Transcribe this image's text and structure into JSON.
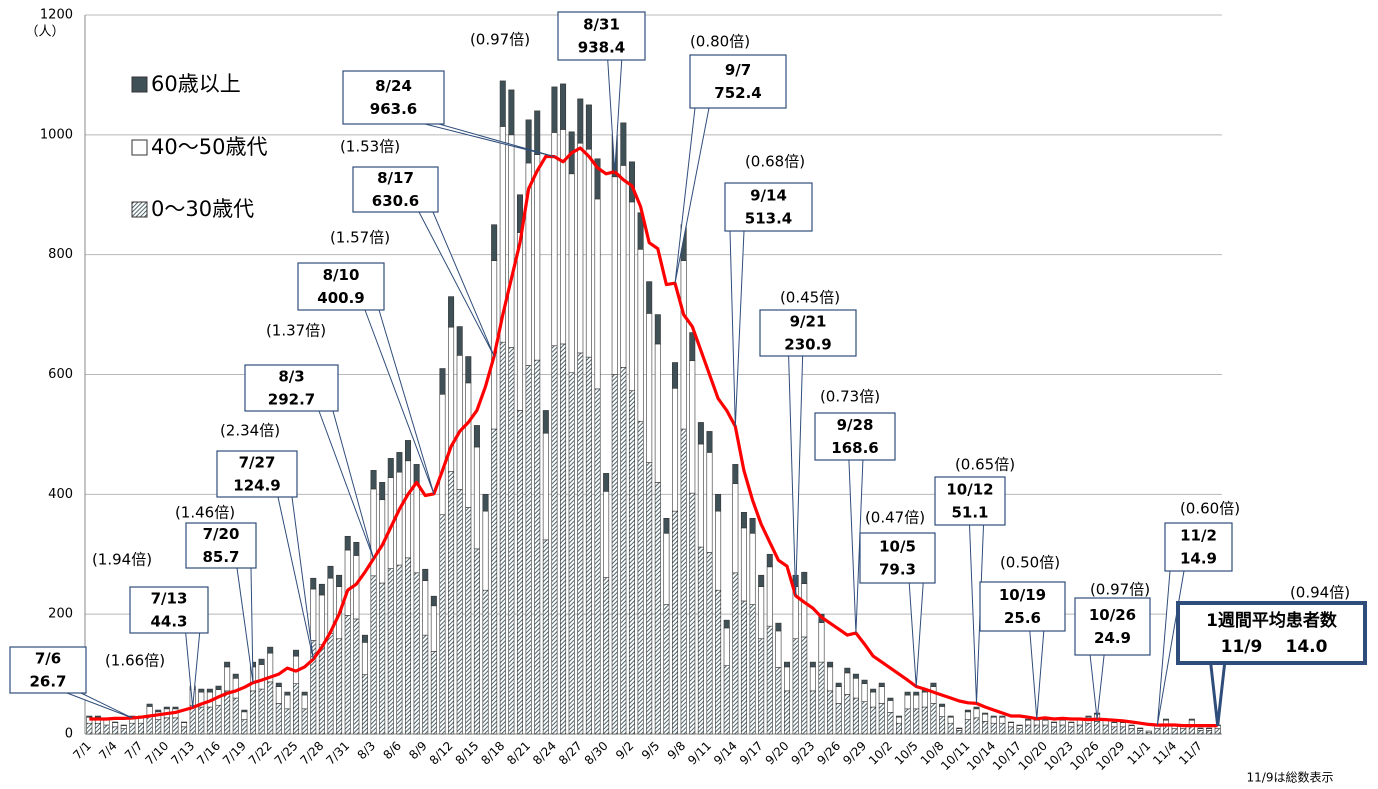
{
  "chart_data": {
    "type": "stacked_bar_line",
    "y_unit": "（人）",
    "footnote": "11/9は総数表示",
    "ylim": [
      0,
      1200
    ],
    "yticks": [
      0,
      200,
      400,
      600,
      800,
      1000,
      1200
    ],
    "grid": true,
    "categories": [
      "7/1",
      null,
      null,
      "7/4",
      null,
      null,
      "7/7",
      null,
      null,
      "7/10",
      null,
      null,
      "7/13",
      null,
      null,
      "7/16",
      null,
      null,
      "7/19",
      null,
      null,
      "7/22",
      null,
      null,
      "7/25",
      null,
      null,
      "7/28",
      null,
      null,
      "7/31",
      null,
      null,
      "8/3",
      null,
      null,
      "8/6",
      null,
      null,
      "8/9",
      null,
      null,
      "8/12",
      null,
      null,
      "8/15",
      null,
      null,
      "8/18",
      null,
      null,
      "8/21",
      null,
      null,
      "8/24",
      null,
      null,
      "8/27",
      null,
      null,
      "8/30",
      null,
      null,
      "9/2",
      null,
      null,
      "9/5",
      null,
      null,
      "9/8",
      null,
      null,
      "9/11",
      null,
      null,
      "9/14",
      null,
      null,
      "9/17",
      null,
      null,
      "9/20",
      null,
      null,
      "9/23",
      null,
      null,
      "9/26",
      null,
      null,
      "9/29",
      null,
      null,
      "10/2",
      null,
      null,
      "10/5",
      null,
      null,
      "10/8",
      null,
      null,
      "10/11",
      null,
      null,
      "10/14",
      null,
      null,
      "10/17",
      null,
      null,
      "10/20",
      null,
      null,
      "10/23",
      null,
      null,
      "10/26",
      null,
      null,
      "10/29",
      null,
      null,
      "11/1",
      null,
      null,
      "11/4",
      null,
      null,
      "11/7",
      null,
      null
    ],
    "series": [
      {
        "name": "60歳以上",
        "color": "#3f5157",
        "values": [
          2,
          2,
          2,
          1,
          1,
          2,
          2,
          4,
          3,
          3,
          3,
          1,
          6,
          5,
          5,
          6,
          8,
          7,
          3,
          8,
          9,
          10,
          6,
          5,
          10,
          5,
          18,
          18,
          20,
          19,
          23,
          22,
          12,
          31,
          29,
          32,
          33,
          34,
          32,
          19,
          16,
          43,
          51,
          48,
          44,
          36,
          28,
          60,
          76,
          75,
          63,
          72,
          73,
          38,
          76,
          76,
          70,
          74,
          74,
          67,
          30,
          70,
          71,
          67,
          61,
          53,
          49,
          25,
          43,
          60,
          47,
          36,
          35,
          28,
          13,
          32,
          26,
          25,
          19,
          21,
          13,
          8,
          19,
          19,
          8,
          14,
          8,
          6,
          8,
          7,
          6,
          5,
          6,
          4,
          2,
          5,
          5,
          5,
          6,
          4,
          2,
          1,
          3,
          3,
          2,
          2,
          2,
          1,
          1,
          2,
          2,
          2,
          1,
          2,
          1,
          2,
          2,
          2,
          2,
          1,
          1,
          1,
          1,
          0,
          1,
          2,
          1,
          1,
          2,
          1,
          1,
          1
        ]
      },
      {
        "name": "40〜50歳代",
        "color": "#ffffff",
        "values": [
          10,
          10,
          8,
          7,
          5,
          10,
          10,
          17,
          13,
          15,
          15,
          7,
          26,
          25,
          25,
          26,
          40,
          33,
          13,
          40,
          41,
          48,
          28,
          23,
          46,
          23,
          86,
          83,
          92,
          87,
          109,
          106,
          54,
          145,
          139,
          152,
          155,
          162,
          149,
          91,
          76,
          201,
          241,
          224,
          208,
          170,
          132,
          281,
          360,
          355,
          297,
          338,
          343,
          178,
          356,
          358,
          332,
          350,
          347,
          317,
          144,
          330,
          337,
          315,
          287,
          249,
          231,
          119,
          205,
          281,
          221,
          172,
          167,
          132,
          63,
          149,
          122,
          119,
          87,
          99,
          61,
          40,
          87,
          89,
          40,
          66,
          40,
          28,
          36,
          33,
          30,
          25,
          28,
          20,
          10,
          23,
          23,
          25,
          28,
          17,
          10,
          3,
          13,
          15,
          12,
          10,
          10,
          7,
          5,
          8,
          8,
          8,
          7,
          8,
          7,
          8,
          10,
          12,
          8,
          7,
          7,
          5,
          3,
          2,
          5,
          8,
          5,
          5,
          8,
          3,
          3,
          5
        ]
      },
      {
        "name": "0〜30歳代",
        "color": "#4f646c",
        "hatch": true,
        "values": [
          18,
          18,
          15,
          12,
          9,
          18,
          18,
          29,
          24,
          27,
          27,
          12,
          48,
          45,
          45,
          48,
          72,
          60,
          24,
          72,
          75,
          87,
          51,
          42,
          84,
          42,
          156,
          149,
          168,
          159,
          198,
          192,
          99,
          264,
          252,
          276,
          282,
          294,
          269,
          165,
          138,
          366,
          438,
          408,
          378,
          309,
          240,
          509,
          654,
          645,
          540,
          615,
          624,
          324,
          648,
          651,
          603,
          636,
          629,
          576,
          261,
          600,
          612,
          573,
          522,
          453,
          420,
          216,
          372,
          509,
          402,
          312,
          303,
          240,
          114,
          269,
          222,
          216,
          159,
          180,
          111,
          72,
          159,
          162,
          72,
          120,
          72,
          51,
          66,
          60,
          54,
          45,
          51,
          36,
          18,
          42,
          42,
          45,
          51,
          29,
          18,
          6,
          24,
          27,
          21,
          18,
          18,
          12,
          9,
          15,
          15,
          15,
          12,
          15,
          12,
          15,
          18,
          21,
          15,
          12,
          12,
          9,
          6,
          3,
          9,
          15,
          9,
          9,
          15,
          6,
          6,
          9
        ]
      }
    ],
    "average": {
      "color": "#ff0000",
      "values": [
        25,
        25,
        25,
        26,
        26,
        26.7,
        28,
        30,
        32,
        34,
        36,
        40,
        44.3,
        50,
        55,
        62,
        68,
        72,
        78,
        85.7,
        90,
        95,
        100,
        110,
        105,
        112,
        124.9,
        145,
        170,
        200,
        240,
        250,
        270,
        292.7,
        315,
        345,
        375,
        400,
        420,
        398,
        400.9,
        440,
        480,
        505,
        520,
        540,
        580,
        630.6,
        700,
        760,
        820,
        910,
        940,
        964,
        963.6,
        955,
        970,
        978,
        964,
        945,
        935,
        938.4,
        925,
        915,
        880,
        820,
        810,
        750,
        752.4,
        700,
        680,
        640,
        600,
        560,
        540,
        513.4,
        440,
        390,
        350,
        320,
        290,
        280,
        230.9,
        220,
        210,
        195,
        185,
        175,
        165,
        168.6,
        150,
        130,
        120,
        110,
        100,
        90,
        79.3,
        75,
        70,
        65,
        60,
        55,
        52,
        51.1,
        45,
        40,
        35,
        30,
        30,
        28,
        25.6,
        27,
        25,
        26,
        25,
        25,
        24,
        24.9,
        24,
        23,
        22,
        20,
        18,
        16,
        14.9,
        15,
        15,
        14,
        14,
        14,
        14,
        14.0
      ]
    },
    "annotations": [
      {
        "date": "7/6",
        "value": 26.7
      },
      {
        "date": "7/13",
        "value": 44.3,
        "ratio": "(1.66倍)"
      },
      {
        "date": "7/20",
        "value": 85.7,
        "ratio": "(1.94倍)"
      },
      {
        "date": "7/27",
        "value": 124.9,
        "ratio": "(1.46倍)"
      },
      {
        "date": "8/3",
        "value": 292.7,
        "ratio": "(2.34倍)"
      },
      {
        "date": "8/10",
        "value": 400.9,
        "ratio": "(1.37倍)"
      },
      {
        "date": "8/17",
        "value": 630.6,
        "ratio": "(1.57倍)"
      },
      {
        "date": "8/24",
        "value": 963.6,
        "ratio": "(1.53倍)"
      },
      {
        "date": "8/31",
        "value": 938.4,
        "ratio": "(0.97倍)"
      },
      {
        "date": "9/7",
        "value": 752.4,
        "ratio": "(0.80倍)"
      },
      {
        "date": "9/14",
        "value": 513.4,
        "ratio": "(0.68倍)"
      },
      {
        "date": "9/21",
        "value": 230.9,
        "ratio": "(0.45倍)"
      },
      {
        "date": "9/28",
        "value": 168.6,
        "ratio": "(0.73倍)"
      },
      {
        "date": "10/5",
        "value": 79.3,
        "ratio": "(0.47倍)"
      },
      {
        "date": "10/12",
        "value": 51.1,
        "ratio": "(0.65倍)"
      },
      {
        "date": "10/19",
        "value": 25.6,
        "ratio": "(0.50倍)"
      },
      {
        "date": "10/26",
        "value": 24.9,
        "ratio": "(0.97倍)"
      },
      {
        "date": "11/2",
        "value": 14.9,
        "ratio": "(0.60倍)"
      },
      {
        "date": "11/9",
        "value": 14.0,
        "value_label": "14.0",
        "ratio": "(0.94倍)",
        "heading": "1週間平均患者数"
      }
    ]
  }
}
